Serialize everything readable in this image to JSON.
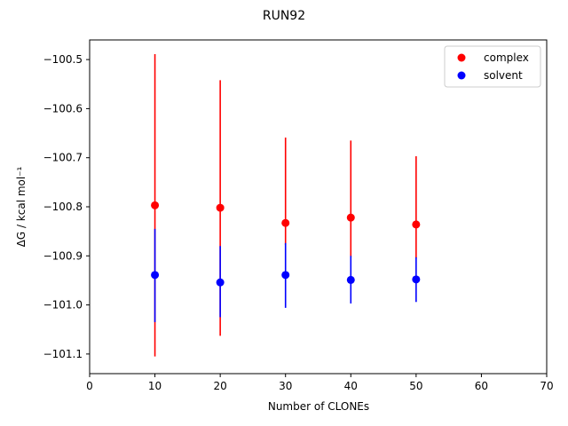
{
  "chart_data": {
    "type": "scatter",
    "title": "RUN92",
    "xlabel": "Number of CLONEs",
    "ylabel": "ΔG / kcal mol⁻¹",
    "xlim": [
      0,
      70
    ],
    "ylim": [
      -101.14,
      -100.46
    ],
    "xticks": [
      0,
      10,
      20,
      30,
      40,
      50,
      60,
      70
    ],
    "xtick_labels": [
      "0",
      "10",
      "20",
      "30",
      "40",
      "50",
      "60",
      "70"
    ],
    "yticks": [
      -100.5,
      -100.6,
      -100.7,
      -100.8,
      -100.9,
      -101.0,
      -101.1
    ],
    "ytick_labels": [
      "−100.5",
      "−100.6",
      "−100.7",
      "−100.8",
      "−100.9",
      "−101.0",
      "−101.1"
    ],
    "grid": false,
    "legend_position": "top-right",
    "series": [
      {
        "name": "complex",
        "color": "#ff0000",
        "x": [
          10,
          20,
          30,
          40,
          50
        ],
        "y": [
          -100.797,
          -100.802,
          -100.833,
          -100.822,
          -100.836
        ],
        "yerr_low": [
          -101.105,
          -101.063,
          -100.878,
          -100.903,
          -100.905
        ],
        "yerr_high": [
          -100.489,
          -100.542,
          -100.659,
          -100.665,
          -100.697
        ]
      },
      {
        "name": "solvent",
        "color": "#0000ff",
        "x": [
          10,
          20,
          30,
          40,
          50
        ],
        "y": [
          -100.939,
          -100.954,
          -100.939,
          -100.949,
          -100.948
        ],
        "yerr_low": [
          -101.035,
          -101.025,
          -101.006,
          -100.997,
          -100.994
        ],
        "yerr_high": [
          -100.845,
          -100.88,
          -100.874,
          -100.9,
          -100.903
        ]
      }
    ]
  }
}
